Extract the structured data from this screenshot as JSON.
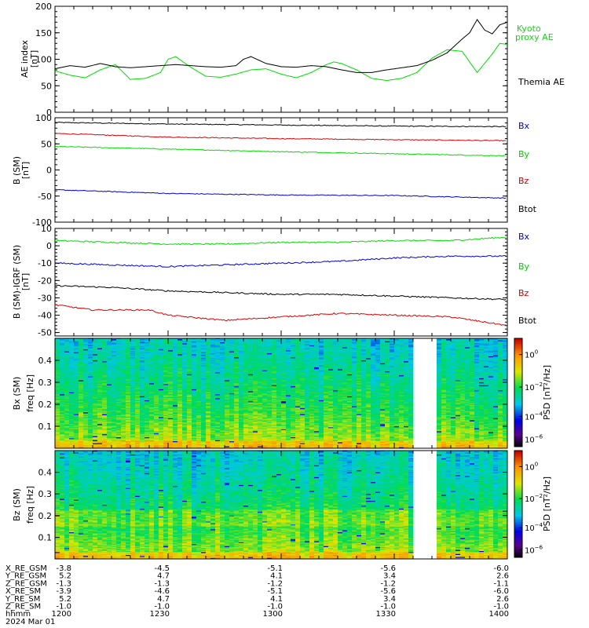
{
  "chart_data": [
    {
      "type": "line",
      "ylabel": "AE index [nT]",
      "ylim": [
        0,
        200
      ],
      "yticks": [
        0,
        50,
        100,
        150,
        200
      ],
      "x_range_minutes": [
        0,
        120
      ],
      "series": [
        {
          "name": "Kyoto proxy AE",
          "color": "#00dd00",
          "x": [
            0,
            4,
            8,
            12,
            16,
            20,
            24,
            28,
            30,
            32,
            36,
            40,
            44,
            48,
            52,
            56,
            60,
            64,
            68,
            72,
            74,
            76,
            80,
            84,
            88,
            92,
            96,
            100,
            104,
            108,
            112,
            116,
            118,
            120
          ],
          "y": [
            78,
            70,
            65,
            80,
            90,
            62,
            64,
            75,
            100,
            105,
            85,
            68,
            66,
            72,
            80,
            82,
            72,
            65,
            75,
            90,
            95,
            92,
            80,
            64,
            60,
            64,
            75,
            102,
            118,
            115,
            75,
            110,
            130,
            128
          ]
        },
        {
          "name": "Themia AE",
          "color": "#000000",
          "x": [
            0,
            4,
            8,
            12,
            16,
            20,
            24,
            28,
            32,
            36,
            40,
            44,
            48,
            50,
            52,
            56,
            60,
            64,
            68,
            72,
            76,
            80,
            84,
            88,
            92,
            96,
            100,
            104,
            108,
            110,
            112,
            114,
            116,
            118,
            120
          ],
          "y": [
            82,
            88,
            85,
            92,
            86,
            84,
            86,
            88,
            90,
            88,
            86,
            85,
            88,
            100,
            105,
            92,
            86,
            85,
            88,
            86,
            80,
            75,
            75,
            80,
            84,
            88,
            98,
            112,
            138,
            150,
            175,
            155,
            148,
            165,
            170
          ]
        }
      ]
    },
    {
      "type": "line",
      "ylabel": "B (SM) [nT]",
      "ylim": [
        -100,
        100
      ],
      "yticks": [
        -100,
        -50,
        0,
        50,
        100
      ],
      "x_range_minutes": [
        0,
        120
      ],
      "legend": [
        "Bx",
        "By",
        "Bz",
        "Btot"
      ],
      "legend_colors": [
        "#0000cc",
        "#00cc00",
        "#cc0000",
        "#000000"
      ],
      "series": [
        {
          "name": "Btot",
          "color": "#000000",
          "x": [
            0,
            30,
            60,
            90,
            120
          ],
          "y": [
            91,
            88,
            86,
            84,
            83
          ]
        },
        {
          "name": "Bz",
          "color": "#dd0000",
          "x": [
            0,
            30,
            60,
            90,
            120
          ],
          "y": [
            70,
            63,
            60,
            58,
            56
          ]
        },
        {
          "name": "By",
          "color": "#00dd00",
          "x": [
            0,
            30,
            60,
            90,
            120
          ],
          "y": [
            45,
            40,
            35,
            31,
            27
          ]
        },
        {
          "name": "Bx",
          "color": "#0000dd",
          "x": [
            0,
            30,
            60,
            90,
            120
          ],
          "y": [
            -38,
            -45,
            -48,
            -49,
            -54
          ]
        }
      ]
    },
    {
      "type": "line",
      "ylabel": "B (SM)-IGRF (SM) [nT]",
      "ylim": [
        -52,
        10
      ],
      "yticks": [
        -50,
        -40,
        -30,
        -20,
        -10,
        0,
        10
      ],
      "x_range_minutes": [
        0,
        120
      ],
      "legend": [
        "Bx",
        "By",
        "Bz",
        "Btot"
      ],
      "legend_colors": [
        "#0000cc",
        "#00cc00",
        "#cc0000",
        "#000000"
      ],
      "series": [
        {
          "name": "By",
          "color": "#00dd00",
          "x": [
            0,
            15,
            30,
            45,
            60,
            75,
            90,
            105,
            120
          ],
          "y": [
            3,
            2,
            1,
            1,
            2,
            2,
            3,
            3,
            5
          ]
        },
        {
          "name": "Bx",
          "color": "#0000dd",
          "x": [
            0,
            15,
            30,
            45,
            60,
            75,
            90,
            105,
            120
          ],
          "y": [
            -10,
            -11,
            -12,
            -11,
            -10,
            -9,
            -7,
            -6,
            -6
          ]
        },
        {
          "name": "Btot",
          "color": "#000000",
          "x": [
            0,
            15,
            30,
            45,
            60,
            75,
            90,
            105,
            120
          ],
          "y": [
            -23,
            -24,
            -26,
            -27,
            -28,
            -28,
            -29,
            -30,
            -31
          ]
        },
        {
          "name": "Bz",
          "color": "#dd0000",
          "x": [
            0,
            10,
            15,
            25,
            30,
            45,
            60,
            75,
            90,
            105,
            120
          ],
          "y": [
            -34,
            -37,
            -37,
            -37,
            -40,
            -43,
            -41,
            -39,
            -40,
            -41,
            -46
          ]
        }
      ]
    },
    {
      "type": "heatmap",
      "ylabel": "Bx (SM) freq [Hz]",
      "ylim": [
        0,
        0.5
      ],
      "yticks": [
        0.1,
        0.2,
        0.3,
        0.4
      ],
      "x_range_minutes": [
        0,
        120
      ],
      "gap_minutes": [
        95,
        101
      ],
      "colorbar_label": "PSD [nT^2/Hz]",
      "colorbar_ticks": [
        "10^0",
        "10^-2",
        "10^-4",
        "10^-6"
      ]
    },
    {
      "type": "heatmap",
      "ylabel": "Bz (SM) freq [Hz]",
      "ylim": [
        0,
        0.5
      ],
      "yticks": [
        0.1,
        0.2,
        0.3,
        0.4
      ],
      "x_range_minutes": [
        0,
        120
      ],
      "gap_minutes": [
        95,
        101
      ],
      "colorbar_label": "PSD [nT^2/Hz]",
      "colorbar_ticks": [
        "10^0",
        "10^-2",
        "10^-4",
        "10^-6"
      ]
    }
  ],
  "panels": {
    "ae": {
      "ylabel": "AE index\n[nT]",
      "legend_green": "Kyoto\nproxy AE",
      "legend_black": "Themia AE"
    },
    "b_sm": {
      "ylabel": "B (SM)\n[nT]"
    },
    "db_sm": {
      "ylabel": "B (SM)-IGRF (SM)\n[nT]"
    },
    "spec_bx": {
      "ylabel1": "Bx (SM)",
      "ylabel2": "freq [Hz]",
      "cbar": "PSD [nT²/Hz]"
    },
    "spec_bz": {
      "ylabel1": "Bz (SM)",
      "ylabel2": "freq [Hz]",
      "cbar": "PSD [nT²/Hz]"
    }
  },
  "orbit_table": {
    "row_labels": [
      "X_RE_GSM",
      "Y_RE_GSM",
      "Z_RE_GSM",
      "X_RE_SM",
      "Y_RE_SM",
      "Z_RE_SM",
      "hhmm"
    ],
    "first_values": [
      "-3.8",
      "5.2",
      "-1.3",
      "-3.9",
      "5.2",
      "-1.0",
      "1200"
    ],
    "columns": [
      {
        "values": [
          "-4.5",
          "4.7",
          "-1.3",
          "-4.6",
          "4.7",
          "-1.0",
          "1230"
        ]
      },
      {
        "values": [
          "-5.1",
          "4.1",
          "-1.2",
          "-5.1",
          "4.1",
          "-1.0",
          "1300"
        ]
      },
      {
        "values": [
          "-5.6",
          "3.4",
          "-1.2",
          "-5.6",
          "3.4",
          "-1.0",
          "1330"
        ]
      },
      {
        "values": [
          "-6.0",
          "2.6",
          "-1.1",
          "-6.0",
          "2.6",
          "-1.0",
          "1400"
        ]
      }
    ],
    "date": "2024 Mar 01"
  }
}
